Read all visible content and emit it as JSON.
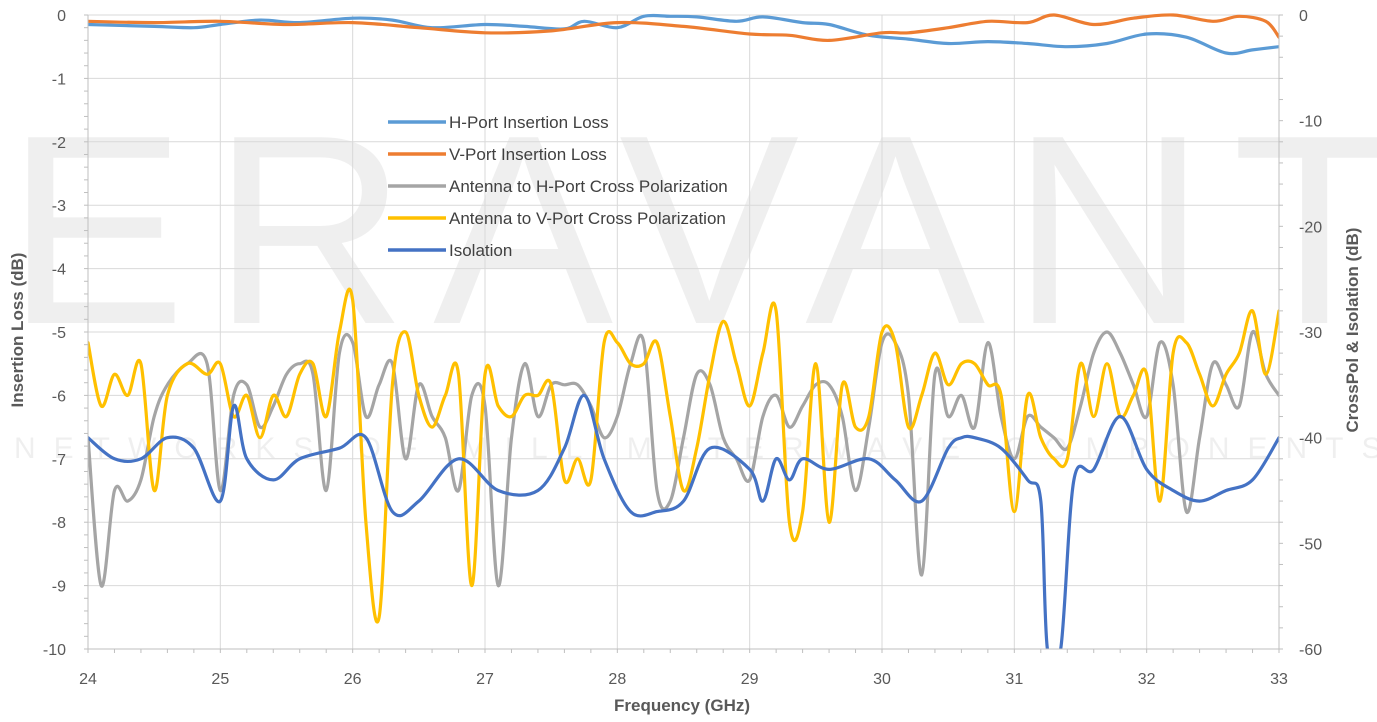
{
  "watermark": {
    "logo_text": "ERAVANT",
    "tagline": "NETWORKS OF MILLIMETERWAVE COMPONENTS"
  },
  "chart_data": {
    "type": "line",
    "xlabel": "Frequency (GHz)",
    "ylabel": "Insertion Loss (dB)",
    "ylabel_right": "CrossPol & Isolation (dB)",
    "xlim": [
      24,
      33
    ],
    "ylim": [
      -10,
      0
    ],
    "ylim_right": [
      -60,
      0
    ],
    "x_ticks": [
      "24",
      "25",
      "26",
      "27",
      "28",
      "29",
      "30",
      "31",
      "32",
      "33"
    ],
    "y_ticks": [
      "0",
      "-1",
      "-2",
      "-3",
      "-4",
      "-5",
      "-6",
      "-7",
      "-8",
      "-9",
      "-10"
    ],
    "y_ticks_right": [
      "0",
      "-10",
      "-20",
      "-30",
      "-40",
      "-50",
      "-60"
    ],
    "grid": true,
    "legend_position": "center-left",
    "series": [
      {
        "name": "H-Port Insertion Loss",
        "axis": "left",
        "color": "#5B9BD5",
        "x": [
          24,
          24.5,
          24.8,
          25,
          25.3,
          25.6,
          26,
          26.3,
          26.6,
          27,
          27.3,
          27.6,
          27.75,
          28,
          28.2,
          28.4,
          28.6,
          28.9,
          29.1,
          29.4,
          29.6,
          29.9,
          30.2,
          30.5,
          30.8,
          31.1,
          31.4,
          31.7,
          32,
          32.3,
          32.6,
          32.8,
          33
        ],
        "y": [
          -0.15,
          -0.18,
          -0.2,
          -0.15,
          -0.08,
          -0.12,
          -0.05,
          -0.08,
          -0.2,
          -0.15,
          -0.18,
          -0.22,
          -0.1,
          -0.2,
          -0.02,
          -0.02,
          -0.03,
          -0.1,
          -0.03,
          -0.12,
          -0.15,
          -0.32,
          -0.38,
          -0.45,
          -0.42,
          -0.45,
          -0.5,
          -0.45,
          -0.3,
          -0.35,
          -0.6,
          -0.55,
          -0.5
        ]
      },
      {
        "name": "V-Port Insertion Loss",
        "axis": "left",
        "color": "#ED7D31",
        "x": [
          24,
          24.5,
          25,
          25.5,
          26,
          26.5,
          27,
          27.5,
          28,
          28.5,
          29,
          29.3,
          29.6,
          30,
          30.2,
          30.5,
          30.8,
          31.1,
          31.3,
          31.6,
          31.9,
          32.2,
          32.5,
          32.7,
          32.9,
          33
        ],
        "y": [
          -0.1,
          -0.12,
          -0.1,
          -0.15,
          -0.12,
          -0.2,
          -0.28,
          -0.25,
          -0.12,
          -0.18,
          -0.3,
          -0.32,
          -0.4,
          -0.28,
          -0.28,
          -0.2,
          -0.1,
          -0.12,
          0,
          -0.15,
          -0.05,
          0,
          -0.1,
          -0.02,
          -0.1,
          -0.35
        ]
      },
      {
        "name": "Antenna to H-Port Cross Polarization",
        "axis": "right",
        "color": "#A5A5A5",
        "x": [
          24,
          24.1,
          24.2,
          24.3,
          24.4,
          24.5,
          24.6,
          24.75,
          24.9,
          25,
          25.1,
          25.2,
          25.3,
          25.4,
          25.5,
          25.6,
          25.7,
          25.8,
          25.9,
          26,
          26.1,
          26.2,
          26.3,
          26.4,
          26.5,
          26.6,
          26.7,
          26.8,
          26.9,
          27,
          27.1,
          27.2,
          27.3,
          27.4,
          27.5,
          27.6,
          27.7,
          27.8,
          27.9,
          28,
          28.1,
          28.2,
          28.3,
          28.4,
          28.5,
          28.6,
          28.7,
          28.8,
          28.9,
          29,
          29.1,
          29.2,
          29.3,
          29.4,
          29.5,
          29.6,
          29.7,
          29.8,
          29.9,
          30,
          30.1,
          30.2,
          30.3,
          30.4,
          30.5,
          30.6,
          30.7,
          30.8,
          30.9,
          31,
          31.1,
          31.2,
          31.3,
          31.4,
          31.5,
          31.6,
          31.7,
          31.8,
          31.9,
          32,
          32.1,
          32.2,
          32.3,
          32.4,
          32.5,
          32.6,
          32.7,
          32.8,
          32.9,
          33
        ],
        "y": [
          -40,
          -54,
          -45,
          -46,
          -44,
          -38,
          -35,
          -33,
          -33,
          -45,
          -36,
          -35,
          -39,
          -37,
          -34,
          -33,
          -34,
          -45,
          -32,
          -31,
          -38,
          -35,
          -33,
          -42,
          -35,
          -38,
          -40,
          -45,
          -36,
          -37,
          -54,
          -40,
          -33,
          -38,
          -35,
          -35,
          -35,
          -37,
          -40,
          -38,
          -33,
          -31,
          -45,
          -46,
          -40,
          -34,
          -35,
          -40,
          -42,
          -44,
          -38,
          -36,
          -39,
          -37,
          -35,
          -35,
          -38,
          -45,
          -39,
          -31,
          -31,
          -36,
          -53,
          -34,
          -38,
          -36,
          -39,
          -31,
          -38,
          -42,
          -38,
          -39,
          -40,
          -41,
          -37,
          -32,
          -30,
          -32,
          -35,
          -38,
          -31,
          -35,
          -47,
          -40,
          -33,
          -35,
          -37,
          -30,
          -34,
          -36
        ]
      },
      {
        "name": "Antenna to V-Port Cross Polarization",
        "axis": "right",
        "color": "#FFC000",
        "x": [
          24,
          24.1,
          24.2,
          24.3,
          24.4,
          24.5,
          24.6,
          24.75,
          24.9,
          25,
          25.1,
          25.2,
          25.3,
          25.4,
          25.5,
          25.6,
          25.7,
          25.8,
          25.9,
          26,
          26.1,
          26.2,
          26.3,
          26.4,
          26.5,
          26.6,
          26.7,
          26.8,
          26.9,
          27,
          27.1,
          27.2,
          27.3,
          27.4,
          27.5,
          27.6,
          27.7,
          27.8,
          27.9,
          28,
          28.1,
          28.2,
          28.3,
          28.4,
          28.5,
          28.6,
          28.7,
          28.8,
          28.9,
          29,
          29.1,
          29.2,
          29.3,
          29.4,
          29.5,
          29.6,
          29.7,
          29.8,
          29.9,
          30,
          30.1,
          30.2,
          30.3,
          30.4,
          30.5,
          30.6,
          30.7,
          30.8,
          30.9,
          31,
          31.1,
          31.2,
          31.3,
          31.4,
          31.5,
          31.6,
          31.7,
          31.8,
          31.9,
          32,
          32.1,
          32.2,
          32.3,
          32.4,
          32.5,
          32.6,
          32.7,
          32.8,
          32.9,
          33
        ],
        "y": [
          -31,
          -37,
          -34,
          -36,
          -33,
          -45,
          -36,
          -33,
          -34,
          -33,
          -38,
          -36,
          -40,
          -36,
          -38,
          -34,
          -33,
          -38,
          -30,
          -27,
          -48,
          -57,
          -35,
          -30,
          -36,
          -39,
          -36,
          -34,
          -54,
          -34,
          -37,
          -38,
          -36,
          -36,
          -35,
          -44,
          -42,
          -44,
          -31,
          -31,
          -33,
          -33,
          -31,
          -38,
          -45,
          -41,
          -34,
          -29,
          -33,
          -37,
          -32,
          -28,
          -48,
          -47,
          -33,
          -48,
          -35,
          -39,
          -38,
          -30,
          -31,
          -39,
          -36,
          -32,
          -35,
          -33,
          -33,
          -35,
          -36,
          -47,
          -36,
          -40,
          -42,
          -42,
          -33,
          -38,
          -33,
          -38,
          -36,
          -34,
          -46,
          -32,
          -31,
          -34,
          -37,
          -34,
          -32,
          -28,
          -34,
          -28
        ]
      },
      {
        "name": "Isolation",
        "axis": "right",
        "color": "#4472C4",
        "x": [
          24,
          24.2,
          24.4,
          24.6,
          24.8,
          25,
          25.1,
          25.2,
          25.4,
          25.6,
          25.9,
          26.1,
          26.3,
          26.5,
          26.8,
          27.1,
          27.4,
          27.6,
          27.75,
          27.9,
          28.1,
          28.3,
          28.5,
          28.7,
          29,
          29.1,
          29.2,
          29.3,
          29.4,
          29.6,
          29.9,
          30.1,
          30.3,
          30.5,
          30.6,
          30.7,
          30.9,
          31.1,
          31.2,
          31.25,
          31.35,
          31.45,
          31.6,
          31.8,
          32,
          32.2,
          32.4,
          32.6,
          32.8,
          33
        ],
        "y": [
          -40,
          -42,
          -42,
          -40,
          -41,
          -46,
          -37,
          -42,
          -44,
          -42,
          -41,
          -40,
          -47,
          -46,
          -42,
          -45,
          -45,
          -41,
          -36,
          -42,
          -47,
          -47,
          -46,
          -41,
          -43,
          -46,
          -42,
          -44,
          -42,
          -43,
          -42,
          -44,
          -46,
          -41,
          -40,
          -40,
          -41,
          -44,
          -46,
          -60,
          -60,
          -44,
          -43,
          -38,
          -43,
          -45,
          -46,
          -45,
          -44,
          -40
        ]
      }
    ]
  }
}
